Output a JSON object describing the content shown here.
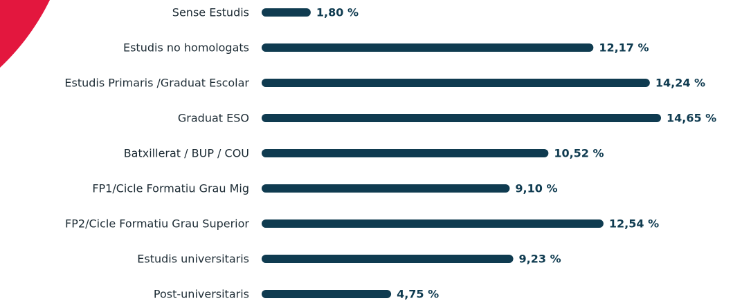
{
  "chart_data": {
    "type": "bar",
    "orientation": "horizontal",
    "color": "#0f3b50",
    "categories": [
      "Sense Estudis",
      "Estudis no homologats",
      "Estudis Primaris /Graduat Escolar",
      "Graduat ESO",
      "Batxillerat / BUP / COU",
      "FP1/Cicle Formatiu Grau Mig",
      "FP2/Cicle Formatiu Grau Superior",
      "Estudis universitaris",
      "Post-universitaris"
    ],
    "values": [
      1.8,
      12.17,
      14.24,
      14.65,
      10.52,
      9.1,
      12.54,
      9.23,
      4.75
    ],
    "value_labels": [
      "1,80 %",
      "12,17 %",
      "14,24 %",
      "14,65 %",
      "10,52 %",
      "9,10 %",
      "12,54 %",
      "9,23 %",
      "4,75 %"
    ]
  }
}
